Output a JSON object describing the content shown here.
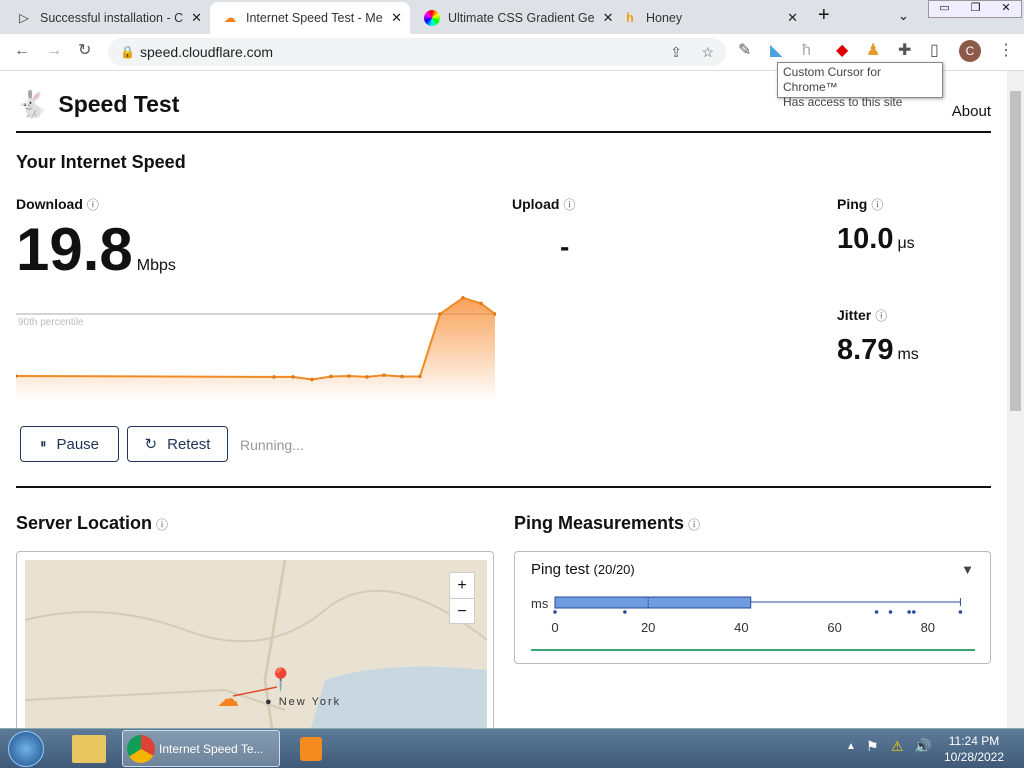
{
  "browser": {
    "tabs": [
      {
        "title": "Successful installation - C",
        "active": false
      },
      {
        "title": "Internet Speed Test - Me",
        "active": true
      },
      {
        "title": "Ultimate CSS Gradient Ge",
        "active": false
      },
      {
        "title": "Honey",
        "active": false
      }
    ],
    "url": "speed.cloudflare.com",
    "tooltip": {
      "line1": "Custom Cursor for Chrome™",
      "line2": "Has access to this site"
    },
    "profile_initial": "C"
  },
  "header": {
    "title": "Speed Test",
    "about": "About"
  },
  "speed": {
    "heading": "Your Internet Speed",
    "download": {
      "label": "Download",
      "value": "19.8",
      "unit": "Mbps"
    },
    "upload": {
      "label": "Upload",
      "value": "-"
    },
    "ping": {
      "label": "Ping",
      "value": "10.0",
      "unit": "μs"
    },
    "jitter": {
      "label": "Jitter",
      "value": "8.79",
      "unit": "ms"
    },
    "graph": {
      "percentile_label": "90th percentile",
      "percentile_value": 20.0,
      "values": [
        5.4,
        5.2,
        5.2,
        4.6,
        5.3,
        5.4,
        5.2,
        5.6,
        5.3,
        5.3,
        20.0,
        23.8,
        22.5,
        20.0
      ],
      "color": "#f6821f"
    }
  },
  "controls": {
    "pause": "Pause",
    "retest": "Retest",
    "status": "Running..."
  },
  "server": {
    "heading": "Server Location",
    "city": "New York",
    "zoom_in": "+",
    "zoom_out": "−"
  },
  "ping_measure": {
    "heading": "Ping Measurements",
    "title": "Ping test",
    "count": "(20/20)",
    "unit": "ms",
    "ticks": [
      "0",
      "20",
      "40",
      "60",
      "80"
    ],
    "box": {
      "q1": 0,
      "median": 20,
      "q3": 42,
      "whisker_high": 87
    },
    "outliers": [
      0,
      15,
      69,
      72,
      76,
      77,
      87
    ]
  },
  "taskbar": {
    "active_window": "Internet Speed Te...",
    "time": "11:24 PM",
    "date": "10/28/2022"
  }
}
